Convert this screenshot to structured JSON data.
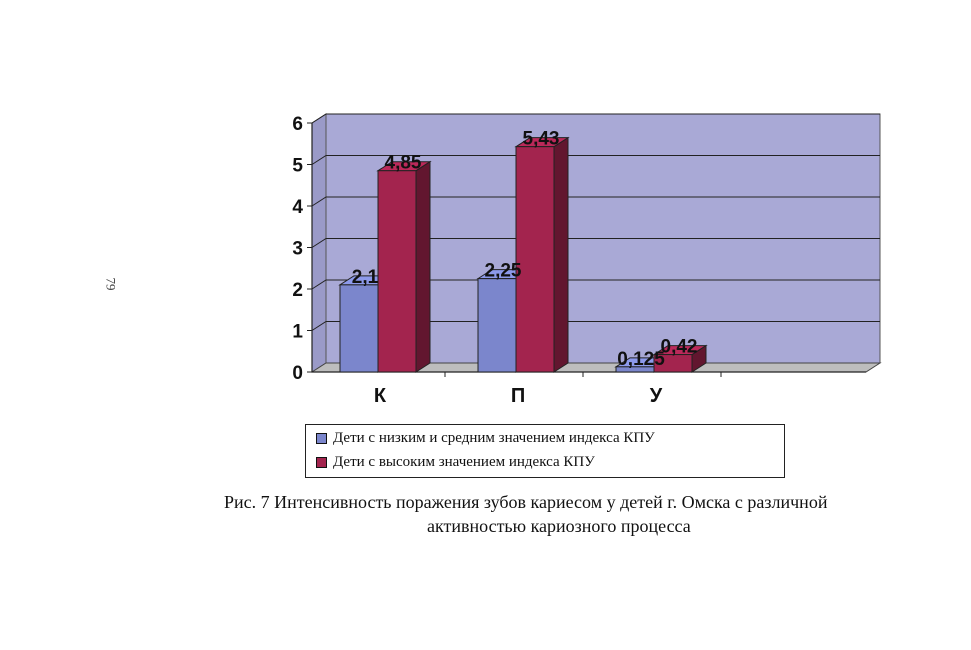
{
  "page_number": "79",
  "chart_data": {
    "type": "bar",
    "categories": [
      "К",
      "П",
      "У"
    ],
    "series": [
      {
        "name": "Дети с низким и средним значением индекса КПУ",
        "values": [
          2.1,
          2.25,
          0.125
        ],
        "labels": [
          "2,1",
          "2,25",
          "0,125"
        ],
        "color": "#7b86cc"
      },
      {
        "name": "Дети с высоким значением индекса КПУ",
        "values": [
          4.85,
          5.43,
          0.42
        ],
        "labels": [
          "4,85",
          "5,43",
          "0,42"
        ],
        "color": "#a3244e"
      }
    ],
    "yticks": [
      "0",
      "1",
      "2",
      "3",
      "4",
      "5",
      "6"
    ],
    "ylim": [
      0,
      6
    ],
    "grid": true,
    "legend_position": "bottom"
  },
  "caption": {
    "line1": "Рис. 7 Интенсивность поражения зубов кариесом у детей г. Омска с различной",
    "line2": "активностью кариозного процесса"
  }
}
